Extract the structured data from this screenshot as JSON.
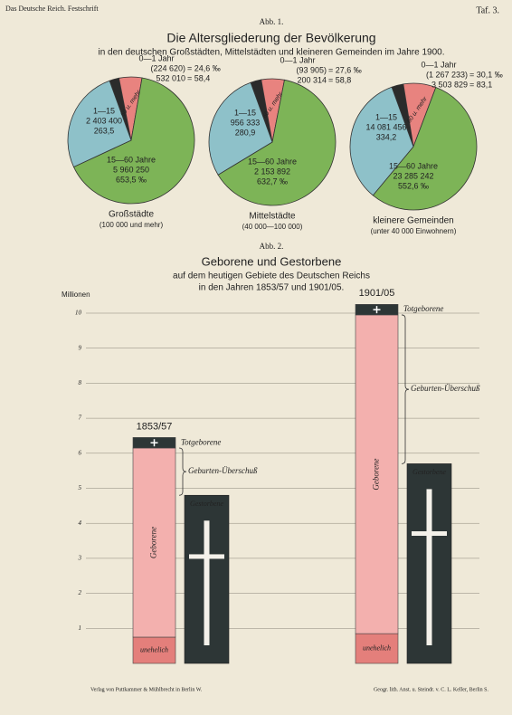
{
  "header": {
    "left": "Das Deutsche Reich. Festschrift",
    "right": "Taf. 3."
  },
  "figure1": {
    "label": "Abb. 1.",
    "title": "Die Altersgliederung der Bevölkerung",
    "subtitle": "in den deutschen Großstädten, Mittelstädten und kleineren Gemeinden im Jahre 1900."
  },
  "chart_data": [
    {
      "type": "pie",
      "title": "Großstädte",
      "subtitle": "(100 000 und mehr)",
      "categories": [
        "0—1 Jahr",
        "60 u. mehr",
        "15—60 Jahre",
        "1—15"
      ],
      "counts": [
        "(224 620)",
        "532 010",
        "5 960 250",
        "2 403 400"
      ],
      "values": [
        24.6,
        58.4,
        653.5,
        263.5
      ],
      "value_labels": [
        "= 24,6 ‰",
        "= 58,4",
        "653,5 ‰",
        "263,5"
      ],
      "colors": [
        "#2b2b2b",
        "#e8837f",
        "#7db457",
        "#8ec1c9"
      ]
    },
    {
      "type": "pie",
      "title": "Mittelstädte",
      "subtitle": "(40 000—100 000)",
      "categories": [
        "0—1 Jahr",
        "60 u. mehr",
        "15—60 Jahre",
        "1—15"
      ],
      "counts": [
        "(93 905)",
        "200 314",
        "2 153 892",
        "956 333"
      ],
      "values": [
        27.6,
        58.8,
        632.7,
        280.9
      ],
      "value_labels": [
        "= 27,6 ‰",
        "= 58,8",
        "632,7 ‰",
        "280,9"
      ],
      "colors": [
        "#2b2b2b",
        "#e8837f",
        "#7db457",
        "#8ec1c9"
      ]
    },
    {
      "type": "pie",
      "title": "kleinere Gemeinden",
      "subtitle": "(unter 40 000 Einwohnern)",
      "categories": [
        "0—1 Jahr",
        "60 u. mehr",
        "15—60 Jahre",
        "1—15"
      ],
      "counts": [
        "(1 267 233)",
        "3 503 829",
        "23 285 242",
        "14 081 456"
      ],
      "values": [
        30.1,
        83.1,
        552.6,
        334.2
      ],
      "value_labels": [
        "= 30,1 ‰",
        "= 83,1",
        "552,6 ‰",
        "334,2"
      ],
      "colors": [
        "#2b2b2b",
        "#e8837f",
        "#7db457",
        "#8ec1c9"
      ]
    },
    {
      "type": "bar",
      "label": "Abb. 2.",
      "title": "Geborene und Gestorbene",
      "subtitle": [
        "auf dem heutigen Gebiete des Deutschen Reichs",
        "in den Jahren 1853/57 und 1901/05."
      ],
      "ylabel": "Millionen",
      "categories": [
        "1853/57",
        "1901/05"
      ],
      "series": [
        {
          "name": "unehelich",
          "color": "#e47f7b",
          "values": [
            0.75,
            0.85
          ]
        },
        {
          "name": "Geborene",
          "color": "#f3b0ae",
          "values": [
            5.4,
            9.1
          ]
        },
        {
          "name": "Totgeborene",
          "color": "#2d3636",
          "values": [
            0.3,
            0.3
          ]
        },
        {
          "name": "Gestorbene",
          "color": "#2d3636",
          "values": [
            4.8,
            5.7
          ]
        }
      ],
      "annotation": "Geburten-Überschuß",
      "ylim": [
        0,
        10
      ],
      "yticks": [
        1,
        2,
        3,
        4,
        5,
        6,
        7,
        8,
        9,
        10
      ],
      "grid": true
    }
  ],
  "footer": {
    "left": "Verlag von Puttkammer & Mühlbrecht in Berlin W.",
    "right": "Geogr. lith. Anst. u. Steindr. v. C. L. Keller, Berlin S."
  }
}
